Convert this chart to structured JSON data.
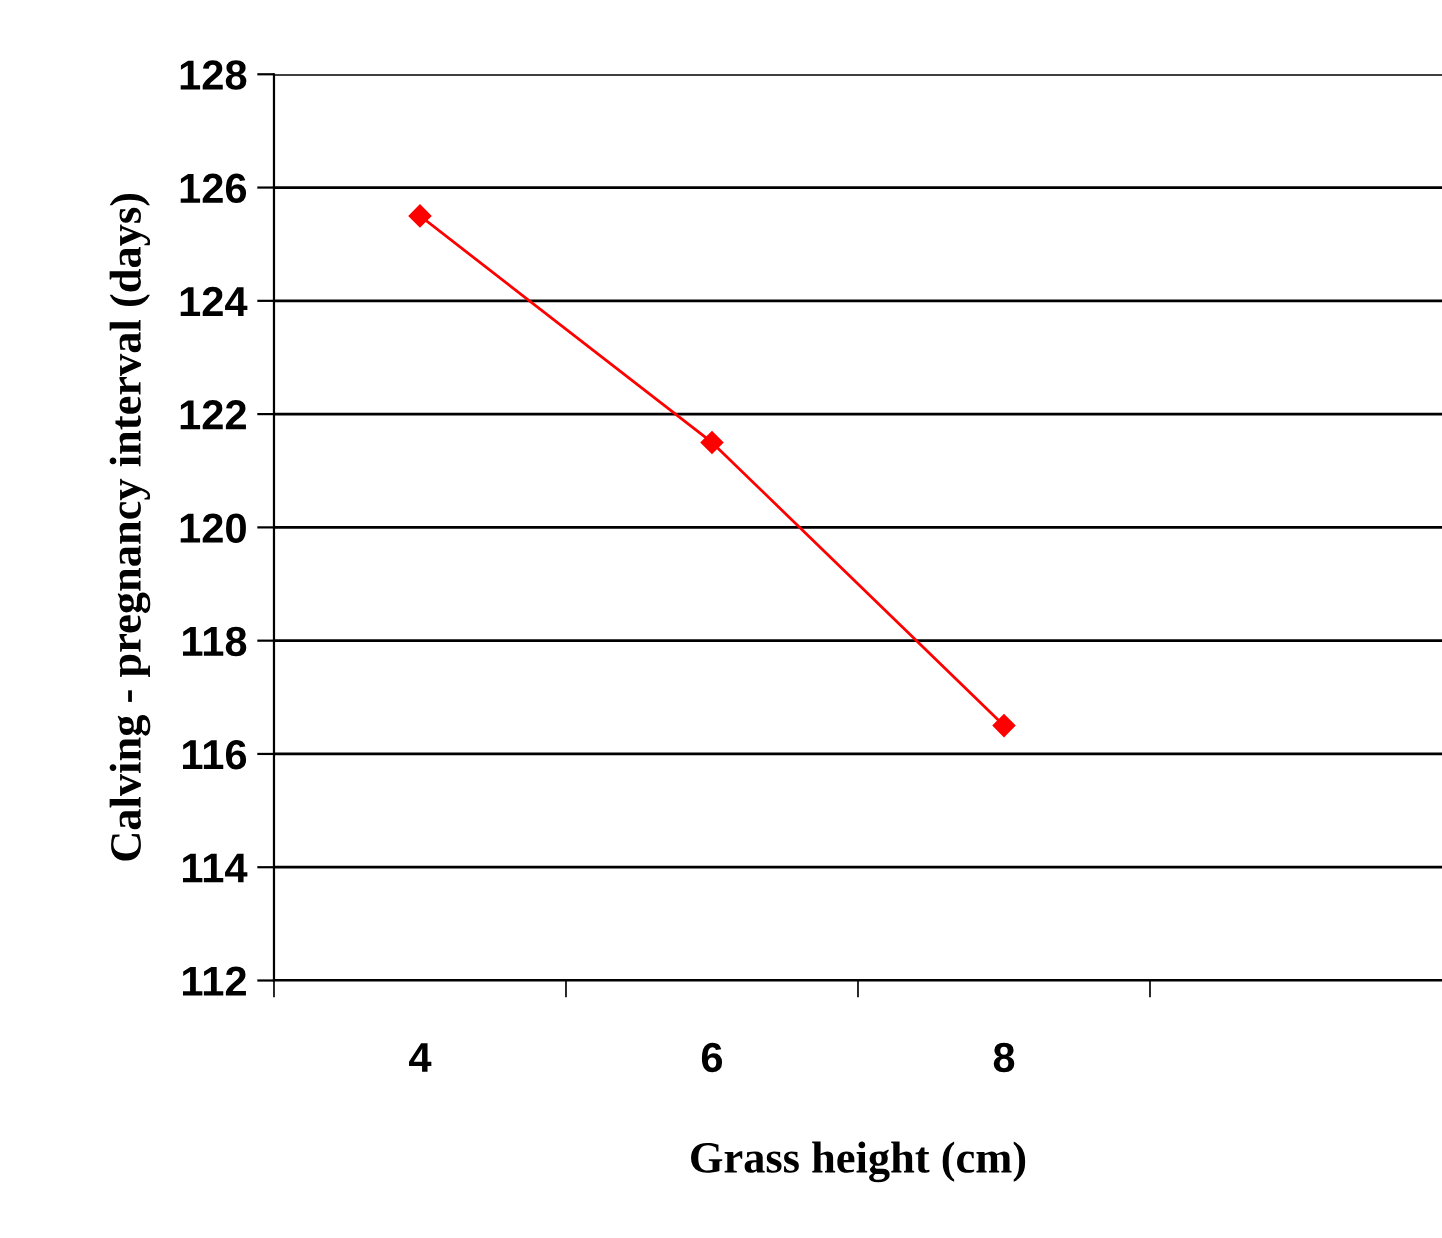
{
  "chart_data": {
    "type": "line",
    "xlabel": "Grass height (cm)",
    "ylabel": "Calving - pregnancy interval (days)",
    "categories": [
      "4",
      "6",
      "8",
      null
    ],
    "series": [
      {
        "color": "#ff0000",
        "values": [
          125.5,
          121.5,
          116.5,
          null
        ]
      }
    ],
    "ylim": [
      112,
      128
    ],
    "yticks": [
      112,
      114,
      116,
      118,
      120,
      122,
      124,
      126,
      128
    ],
    "grid": "y",
    "marker": "diamond",
    "line_style": "solid",
    "legend": false
  }
}
